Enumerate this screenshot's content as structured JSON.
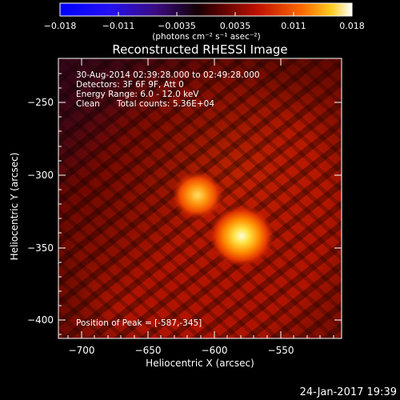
{
  "colorbar": {
    "ticks": [
      "−0.018",
      "−0.011",
      "−0.0035",
      "0.0035",
      "0.011",
      "0.018"
    ],
    "units": "(photons cm⁻² s⁻¹ asec⁻²)"
  },
  "title": "Reconstructed RHESSI Image",
  "info": {
    "line1": "30-Aug-2014 02:39:28.000 to 02:49:28.000",
    "line2": "Detectors: 3F 6F 9F, Att 0",
    "line3": "Energy Range: 6.0 - 12.0 keV",
    "line4_a": "Clean",
    "line4_b": "Total counts: 5.36E+04"
  },
  "peak_label": "Position of Peak = [-587,-345]",
  "axes": {
    "x_label": "Heliocentric X (arcsec)",
    "y_label": "Heliocentric Y (arcsec)",
    "x_ticks": [
      "−700",
      "−650",
      "−600",
      "−550"
    ],
    "y_ticks": [
      "−250",
      "−300",
      "−350",
      "−400"
    ]
  },
  "timestamp": "24-Jan-2017 19:39",
  "colors": {
    "background": "#000000",
    "map_base": "#b01400",
    "source_core": "#ffffd8"
  }
}
